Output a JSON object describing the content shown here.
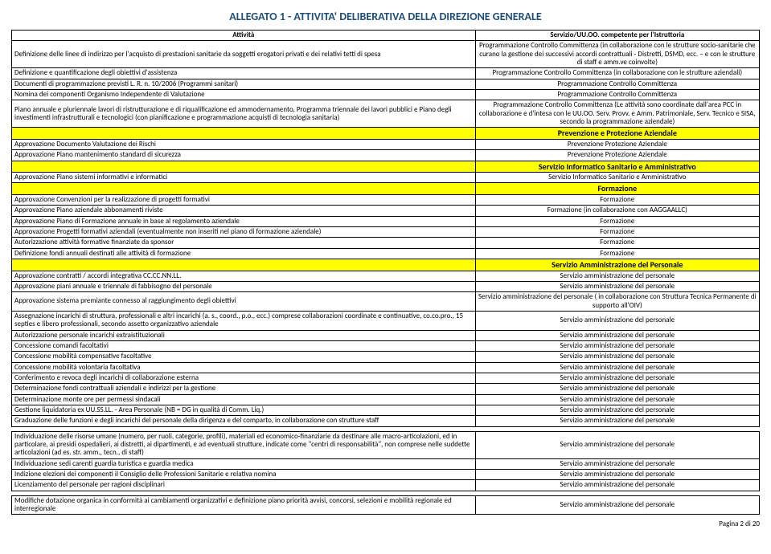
{
  "title": "ALLEGATO 1 - ATTIVITA' DELIBERATIVA DELLA DIREZIONE GENERALE",
  "header": {
    "attivita": "Attività",
    "servizio": "Servizio/UU.OO. competente per l'Istruttoria"
  },
  "colors": {
    "section_bg": "#ffff00",
    "title_color": "#1f4e79"
  },
  "rows": [
    {
      "att": "Definizione delle linee di indirizzo per l'acquisto di prestazioni sanitarie da soggetti erogatori privati e dei relativi tetti di spesa",
      "srv": "Programmazione Controllo Committenza (in collaborazione con le strutture socio-sanitarie che curano la gestione dei successivi accordi contrattuali - Distretti, DSMD, ecc. – e con le strutture di staff e amm.ve coinvolte)"
    },
    {
      "att": "Definizione e quantificazione degli obiettivi d'assistenza",
      "srv": "Programmazione Controllo Committenza (in collaborazione con le strutture aziendali)"
    },
    {
      "att": "Documenti di programmazione previsti L. R. n. 10/2006 (Programmi sanitari)",
      "srv": "Programmazione Controllo Committenza"
    },
    {
      "att": "Nomina dei componenti Organismo Independente di Valutazione",
      "srv": "Programmazione Controllo Committenza"
    },
    {
      "att": "Piano annuale e pluriennale lavori di ristrutturazione e di riqualificazione ed ammodernamento, Programma triennale dei lavori pubblici e Piano degli investimenti infrastrutturali e tecnologici (con pianificazione e programmazione acquisti di tecnologia sanitaria)",
      "srv": "Programmazione Controllo Committenza (Le attività sono coordinate dall'area PCC in collaborazione e d'intesa con le UU.OO. Serv. Provv. e Amm. Patrimoniale, Serv. Tecnico e SISA, secondo la programmazione aziendale)"
    },
    {
      "section": "Prevenzione e Protezione Aziendale"
    },
    {
      "att": "Approvazione Documento Valutazione dei Rischi",
      "srv": "Prevenzione Protezione Aziendale"
    },
    {
      "att": "Approvazione Piano mantenimento standard di sicurezza",
      "srv": "Prevenzione Protezione Aziendale"
    },
    {
      "section": "Servizio Informatico Sanitario e Amministrativo"
    },
    {
      "att": "Approvazione Piano sistemi informativi e informatici",
      "srv": "Servizio Informatico Sanitario e Amministrativo"
    },
    {
      "section": "Formazione"
    },
    {
      "att": "Approvazione Convenzioni per la realizzazione di progetti formativi",
      "srv": "Formazione"
    },
    {
      "att": "Approvazione Piano aziendale abbonamenti riviste",
      "srv": "Formazione (in collaborazione con AAGGAALLC)"
    },
    {
      "att": "Approvazione Piano di Formazione annuale in base al regolamento aziendale",
      "srv": "Formazione"
    },
    {
      "att": "Approvazione Progetti formativi aziendali (eventualmente non inseriti nel piano di formazione aziendale)",
      "srv": "Formazione"
    },
    {
      "att": "Autorizzazione attività formative finanziate da sponsor",
      "srv": "Formazione"
    },
    {
      "att": "Definizione fondi annuali destinati alle attività di formazione",
      "srv": "Formazione"
    },
    {
      "section": "Servizio Amministrazione del Personale"
    },
    {
      "att": "Approvazione contratti / accordi integrativa CC.CC.NN.LL.",
      "srv": "Servizio amministrazione del personale"
    },
    {
      "att": "Approvazione piani annuale e triennale di fabbisogno del personale",
      "srv": "Servizio amministrazione del personale"
    },
    {
      "att": "Approvazione sistema premiante connesso al raggiungimento degli obiettivi",
      "srv": "Servizio amministrazione del personale ( in collaborazione con Struttura Tecnica Permanente di supporto all'OIV)"
    },
    {
      "att": "Assegnazione incarichi di struttura, professionali e altri incarichi (a. s., coord., p.o., ecc.) comprese collaborazioni coordinate e continuative, co.co.pro., 15 septies e libero professionali, secondo assetto organizzativo aziendale",
      "srv": "Servizio amministrazione del personale"
    },
    {
      "att": "Autorizzazione personale incarichi extraistituzionali",
      "srv": "Servizio amministrazione del personale"
    },
    {
      "att": "Concessione comandi facoltativi",
      "srv": "Servizio amministrazione del personale"
    },
    {
      "att": "Concessione mobilità compensative facoltative",
      "srv": "Servizio amministrazione del personale"
    },
    {
      "att": "Concessione mobilità volontaria facoltativa",
      "srv": "Servizio amministrazione del personale"
    },
    {
      "att": "Conferimento e revoca degli incarichi di collaborazione esterna",
      "srv": "Servizio amministrazione del personale"
    },
    {
      "att": "Determinazione fondi contrattuali aziendali e indirizzi per la gestione",
      "srv": "Servizio amministrazione del personale"
    },
    {
      "att": "Determinazione monte ore per permessi sindacali",
      "srv": "Servizio amministrazione del personale"
    },
    {
      "att": "Gestione liquidatoria ex UU.SS.LL. - Area Personale (NB = DG in qualità di Comm. Liq.)",
      "srv": "Servizio amministrazione del personale"
    },
    {
      "att": "Graduazione delle funzioni e degli incarichi del personale della dirigenza e del comparto, in collaborazione con strutture staff",
      "srv": "Servizio amministrazione del personale"
    },
    {
      "spacer": true
    },
    {
      "att": "Individuazione delle risorse umane (numero, per ruoli, categorie, profili), materiali ed economico-finanziarie da destinare alle macro-articolazioni, ed in particolare, ai presidi ospedalieri, ai distretti, ai dipartimenti, e ad eventuali strutture, indicate come \"centri di responsabilità\", non comprese nelle suddette articolazioni (ad es. str. amm., tecn., di staff)",
      "srv": "Servizio amministrazione del personale"
    },
    {
      "att": "Individuazione sedi carenti guardia turistica e guardia medica",
      "srv": "Servizio amministrazione del personale"
    },
    {
      "att": "Indizione elezioni dei componenti il Consiglio delle Professioni Sanitarie e relativa nomina",
      "srv": "Servizio amministrazione del personale"
    },
    {
      "att": "Licenziamento del personale per ragioni disciplinari",
      "srv": "Servizio amministrazione del personale"
    },
    {
      "spacer": true
    },
    {
      "att": "Modifiche dotazione organica in conformità ai cambiamenti organizzativi e definizione piano priorità avvisi, concorsi, selezioni e mobilità regionale ed interregionale",
      "srv": "Servizio amministrazione del personale"
    }
  ],
  "footer": "Pagina 2 di 20"
}
